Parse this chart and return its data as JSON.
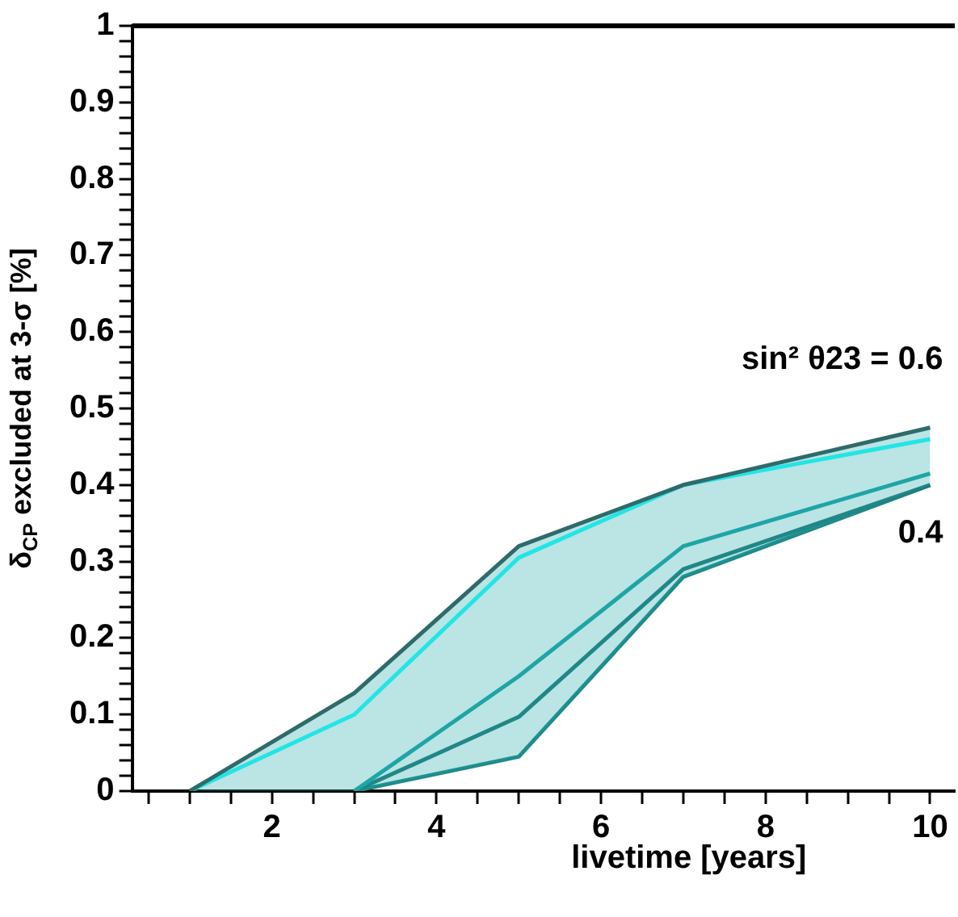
{
  "chart_data": {
    "type": "line",
    "xlabel": "livetime [years]",
    "ylabel": "δ$_{CP}$ excluded at 3-σ [%]",
    "x": [
      1,
      3,
      5,
      7,
      10
    ],
    "series": [
      {
        "color": "#2f6b6b",
        "values": [
          0,
          0.128,
          0.32,
          0.4,
          0.475
        ]
      },
      {
        "color": "#22e5e5",
        "values": [
          0,
          0.1,
          0.305,
          0.4,
          0.46
        ]
      },
      {
        "color": "#1fa5a5",
        "values": [
          null,
          0,
          0.15,
          0.32,
          0.415
        ],
        "lower": [
          0,
          0,
          0.045,
          0.28,
          0.4
        ],
        "upper": [
          0,
          0.128,
          0.32,
          0.4,
          0.475
        ]
      },
      {
        "color": "#227a7a",
        "values": [
          null,
          0,
          0.097,
          0.29,
          0.4
        ]
      },
      {
        "color": "#1f8a8a",
        "values": [
          null,
          0,
          0.045,
          0.28,
          0.4
        ]
      }
    ],
    "xlim": [
      0.3,
      10.3
    ],
    "xticks": [
      {
        "value": 0.5,
        "label": null
      },
      {
        "value": 1,
        "label": null
      },
      {
        "value": 1.5,
        "label": null
      },
      2,
      {
        "value": 2.5,
        "label": null
      },
      {
        "value": 3,
        "label": null
      },
      {
        "value": 3.5,
        "label": null
      },
      4,
      {
        "value": 4.5,
        "label": null
      },
      {
        "value": 5,
        "label": null
      },
      {
        "value": 5.5,
        "label": null
      },
      6,
      {
        "value": 6.5,
        "label": null
      },
      {
        "value": 7,
        "label": null
      },
      {
        "value": 7.5,
        "label": null
      },
      8,
      {
        "value": 8.5,
        "label": null
      },
      {
        "value": 9,
        "label": null
      },
      {
        "value": 9.5,
        "label": null
      },
      10
    ],
    "ylim": [
      0,
      1
    ],
    "yticks": [
      0,
      {
        "value": 0.02,
        "label": null
      },
      {
        "value": 0.04,
        "label": null
      },
      {
        "value": 0.06,
        "label": null
      },
      {
        "value": 0.08,
        "label": null
      },
      0.1,
      {
        "value": 0.12,
        "label": null
      },
      {
        "value": 0.14,
        "label": null
      },
      {
        "value": 0.16,
        "label": null
      },
      {
        "value": 0.18,
        "label": null
      },
      0.2,
      {
        "value": 0.22,
        "label": null
      },
      {
        "value": 0.24,
        "label": null
      },
      {
        "value": 0.26,
        "label": null
      },
      {
        "value": 0.28,
        "label": null
      },
      0.3,
      {
        "value": 0.32,
        "label": null
      },
      {
        "value": 0.34,
        "label": null
      },
      {
        "value": 0.36,
        "label": null
      },
      {
        "value": 0.38,
        "label": null
      },
      0.4,
      {
        "value": 0.42,
        "label": null
      },
      {
        "value": 0.44,
        "label": null
      },
      {
        "value": 0.46,
        "label": null
      },
      {
        "value": 0.48,
        "label": null
      },
      0.5,
      {
        "value": 0.52,
        "label": null
      },
      {
        "value": 0.54,
        "label": null
      },
      {
        "value": 0.56,
        "label": null
      },
      {
        "value": 0.58,
        "label": null
      },
      0.6,
      {
        "value": 0.62,
        "label": null
      },
      {
        "value": 0.64,
        "label": null
      },
      {
        "value": 0.66,
        "label": null
      },
      {
        "value": 0.68,
        "label": null
      },
      0.7,
      {
        "value": 0.72,
        "label": null
      },
      {
        "value": 0.74,
        "label": null
      },
      {
        "value": 0.76,
        "label": null
      },
      {
        "value": 0.78,
        "label": null
      },
      0.8,
      {
        "value": 0.82,
        "label": null
      },
      {
        "value": 0.84,
        "label": null
      },
      {
        "value": 0.86,
        "label": null
      },
      {
        "value": 0.88,
        "label": null
      },
      0.9,
      {
        "value": 0.92,
        "label": null
      },
      {
        "value": 0.94,
        "label": null
      },
      {
        "value": 0.96,
        "label": null
      },
      {
        "value": 0.98,
        "label": null
      },
      1
    ],
    "annotations": [
      {
        "text": "sin² θ23 = 0.6",
        "x": 10,
        "y": 0.475
      },
      {
        "text": "0.4",
        "x": 10,
        "y": 0.4
      }
    ],
    "grid": false,
    "legend": false,
    "marker": "none",
    "line_style": "solid"
  }
}
